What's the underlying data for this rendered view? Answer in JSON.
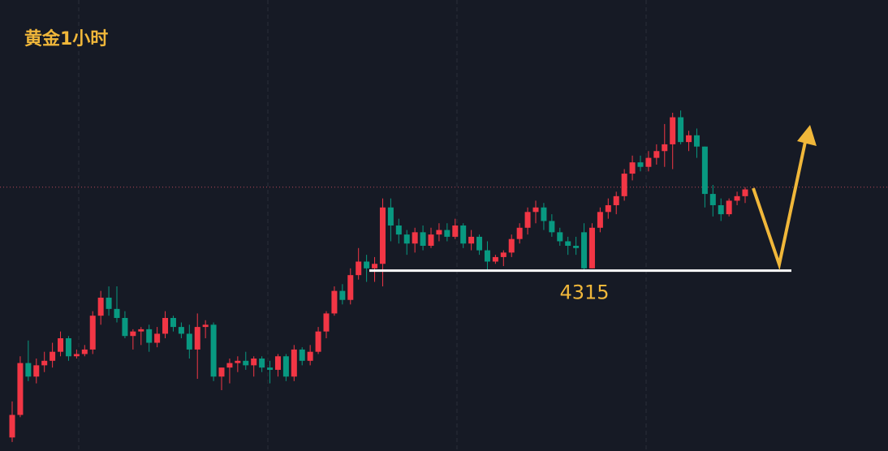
{
  "chart_data": {
    "type": "candlestick",
    "title": "黄金1小时",
    "up_color": "#f23645",
    "down_color": "#089981",
    "ylim": [
      4235,
      4435
    ],
    "price_line": 4352,
    "support": 4315,
    "open": [
      4241,
      4251,
      4274,
      4268,
      4273,
      4275,
      4279,
      4285,
      4277,
      4278,
      4280,
      4295,
      4303,
      4298,
      4294,
      4286,
      4288,
      4289,
      4283,
      4287,
      4294,
      4290,
      4287,
      4280,
      4290,
      4291,
      4268,
      4272,
      4274,
      4275,
      4273,
      4276,
      4272,
      4271,
      4277,
      4268,
      4280,
      4275,
      4279,
      4288,
      4296,
      4306,
      4302,
      4313,
      4319,
      4316,
      4318,
      4343,
      4335,
      4331,
      4327,
      4332,
      4326,
      4331,
      4333,
      4330,
      4335,
      4327,
      4330,
      4324,
      4319,
      4321,
      4323,
      4329,
      4334,
      4341,
      4343,
      4337,
      4332,
      4328,
      4326,
      4332,
      4316,
      4334,
      4341,
      4344,
      4348,
      4358,
      4363,
      4361,
      4365,
      4368,
      4371,
      4383,
      4372,
      4375,
      4370,
      4349,
      4344,
      4340,
      4346,
      4348
    ],
    "high": [
      4257,
      4277,
      4284,
      4276,
      4279,
      4283,
      4288,
      4286,
      4280,
      4282,
      4297,
      4306,
      4308,
      4308,
      4297,
      4289,
      4290,
      4291,
      4290,
      4297,
      4295,
      4292,
      4291,
      4296,
      4293,
      4292,
      4272,
      4276,
      4277,
      4279,
      4277,
      4277,
      4275,
      4278,
      4278,
      4282,
      4281,
      4282,
      4290,
      4297,
      4308,
      4309,
      4316,
      4325,
      4322,
      4321,
      4347,
      4347,
      4338,
      4333,
      4334,
      4335,
      4334,
      4336,
      4336,
      4338,
      4336,
      4333,
      4331,
      4328,
      4322,
      4324,
      4331,
      4336,
      4343,
      4346,
      4345,
      4340,
      4334,
      4330,
      4330,
      4336,
      4336,
      4343,
      4347,
      4350,
      4360,
      4366,
      4366,
      4368,
      4371,
      4380,
      4385,
      4386,
      4377,
      4378,
      4370,
      4353,
      4347,
      4347,
      4350,
      4352
    ],
    "low": [
      4239,
      4250,
      4266,
      4265,
      4270,
      4272,
      4277,
      4275,
      4276,
      4277,
      4278,
      4291,
      4295,
      4292,
      4285,
      4280,
      4282,
      4279,
      4281,
      4285,
      4288,
      4285,
      4276,
      4267,
      4285,
      4266,
      4262,
      4265,
      4270,
      4271,
      4268,
      4270,
      4265,
      4268,
      4266,
      4266,
      4273,
      4273,
      4278,
      4285,
      4295,
      4300,
      4300,
      4311,
      4310,
      4310,
      4308,
      4328,
      4327,
      4322,
      4323,
      4324,
      4325,
      4328,
      4328,
      4329,
      4325,
      4324,
      4322,
      4315,
      4318,
      4317,
      4321,
      4327,
      4331,
      4336,
      4333,
      4330,
      4326,
      4322,
      4322,
      4315,
      4316,
      4332,
      4338,
      4340,
      4346,
      4355,
      4359,
      4359,
      4362,
      4361,
      4360,
      4371,
      4368,
      4365,
      4343,
      4339,
      4337,
      4339,
      4344,
      4345
    ],
    "close": [
      4251,
      4274,
      4268,
      4273,
      4275,
      4279,
      4285,
      4277,
      4278,
      4280,
      4295,
      4303,
      4298,
      4294,
      4286,
      4288,
      4289,
      4283,
      4287,
      4294,
      4290,
      4287,
      4280,
      4290,
      4291,
      4268,
      4272,
      4274,
      4275,
      4273,
      4276,
      4272,
      4271,
      4277,
      4268,
      4280,
      4275,
      4279,
      4288,
      4296,
      4306,
      4302,
      4313,
      4319,
      4316,
      4318,
      4343,
      4335,
      4331,
      4327,
      4332,
      4326,
      4331,
      4333,
      4330,
      4335,
      4327,
      4330,
      4324,
      4319,
      4321,
      4323,
      4329,
      4334,
      4341,
      4343,
      4337,
      4332,
      4328,
      4326,
      4325,
      4316,
      4334,
      4341,
      4344,
      4348,
      4358,
      4363,
      4361,
      4365,
      4368,
      4371,
      4383,
      4372,
      4375,
      4370,
      4349,
      4344,
      4340,
      4346,
      4348,
      4351
    ]
  }
}
